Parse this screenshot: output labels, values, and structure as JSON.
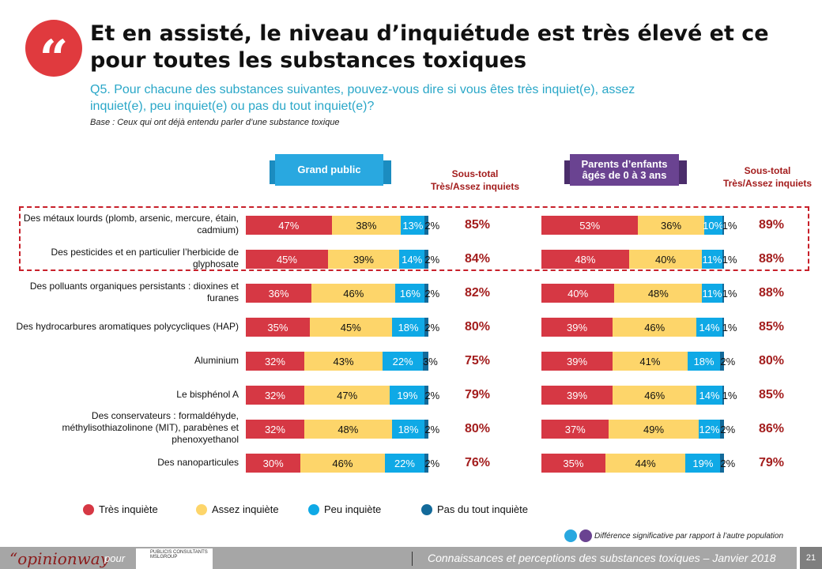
{
  "header": {
    "title": "Et en assisté, le niveau d’inquiétude est très élevé et ce pour toutes les substances toxiques",
    "question": "Q5. Pour chacune des substances suivantes, pouvez-vous dire si vous êtes très inquiet(e), assez inquiet(e), peu inquiet(e) ou pas du tout inquiet(e)?",
    "base": "Base : Ceux qui ont déjà entendu parler d’une substance toxique",
    "quote_mark": "“"
  },
  "chart_data": {
    "type": "bar",
    "orientation": "horizontal",
    "stacked": true,
    "categories": [
      "Des métaux lourds (plomb, arsenic, mercure, étain, cadmium)",
      "Des pesticides et en particulier l’herbicide de glyphosate",
      "Des polluants organiques persistants : dioxines et furanes",
      "Des hydrocarbures aromatiques polycycliques (HAP)",
      "Aluminium",
      "Le bisphénol A",
      "Des conservateurs : formaldéhyde, méthylisothiazolinone (MIT), parabènes et phenoxyethanol",
      "Des nanoparticules"
    ],
    "legend": [
      "Très inquiète",
      "Assez inquiète",
      "Peu inquiète",
      "Pas du tout inquiète"
    ],
    "colors": [
      "#d63844",
      "#fdd56a",
      "#0fa9e6",
      "#136a9a"
    ],
    "subtotal_label": "Sous-total Très/Assez inquiets",
    "groups": [
      {
        "name": "Grand public",
        "color": "#29a8e0",
        "values": [
          [
            47,
            38,
            13,
            2
          ],
          [
            45,
            39,
            14,
            2
          ],
          [
            36,
            46,
            16,
            2
          ],
          [
            35,
            45,
            18,
            2
          ],
          [
            32,
            43,
            22,
            3
          ],
          [
            32,
            47,
            19,
            2
          ],
          [
            32,
            48,
            18,
            2
          ],
          [
            30,
            46,
            22,
            2
          ]
        ],
        "subtotals": [
          "85%",
          "84%",
          "82%",
          "80%",
          "75%",
          "79%",
          "80%",
          "76%"
        ]
      },
      {
        "name": "Parents d’enfants âgés de 0 à 3 ans",
        "color": "#6a4391",
        "values": [
          [
            53,
            36,
            10,
            1
          ],
          [
            48,
            40,
            11,
            1
          ],
          [
            40,
            48,
            11,
            1
          ],
          [
            39,
            46,
            14,
            1
          ],
          [
            39,
            41,
            18,
            2
          ],
          [
            39,
            46,
            14,
            1
          ],
          [
            37,
            49,
            12,
            2
          ],
          [
            35,
            44,
            19,
            2
          ]
        ],
        "subtotals": [
          "89%",
          "88%",
          "88%",
          "85%",
          "80%",
          "85%",
          "86%",
          "79%"
        ]
      }
    ]
  },
  "sub_line1": "Sous-total",
  "sub_line2": "Très/Assez inquiets",
  "note": "Différence significative par rapport à l’autre population",
  "footer": {
    "brand": "“opinionway",
    "pour": "pour",
    "client": "PUBLICIS CONSULTANTS MSLGROUP",
    "caption": "Connaissances et perceptions des substances toxiques – Janvier 2018",
    "page": "21"
  }
}
